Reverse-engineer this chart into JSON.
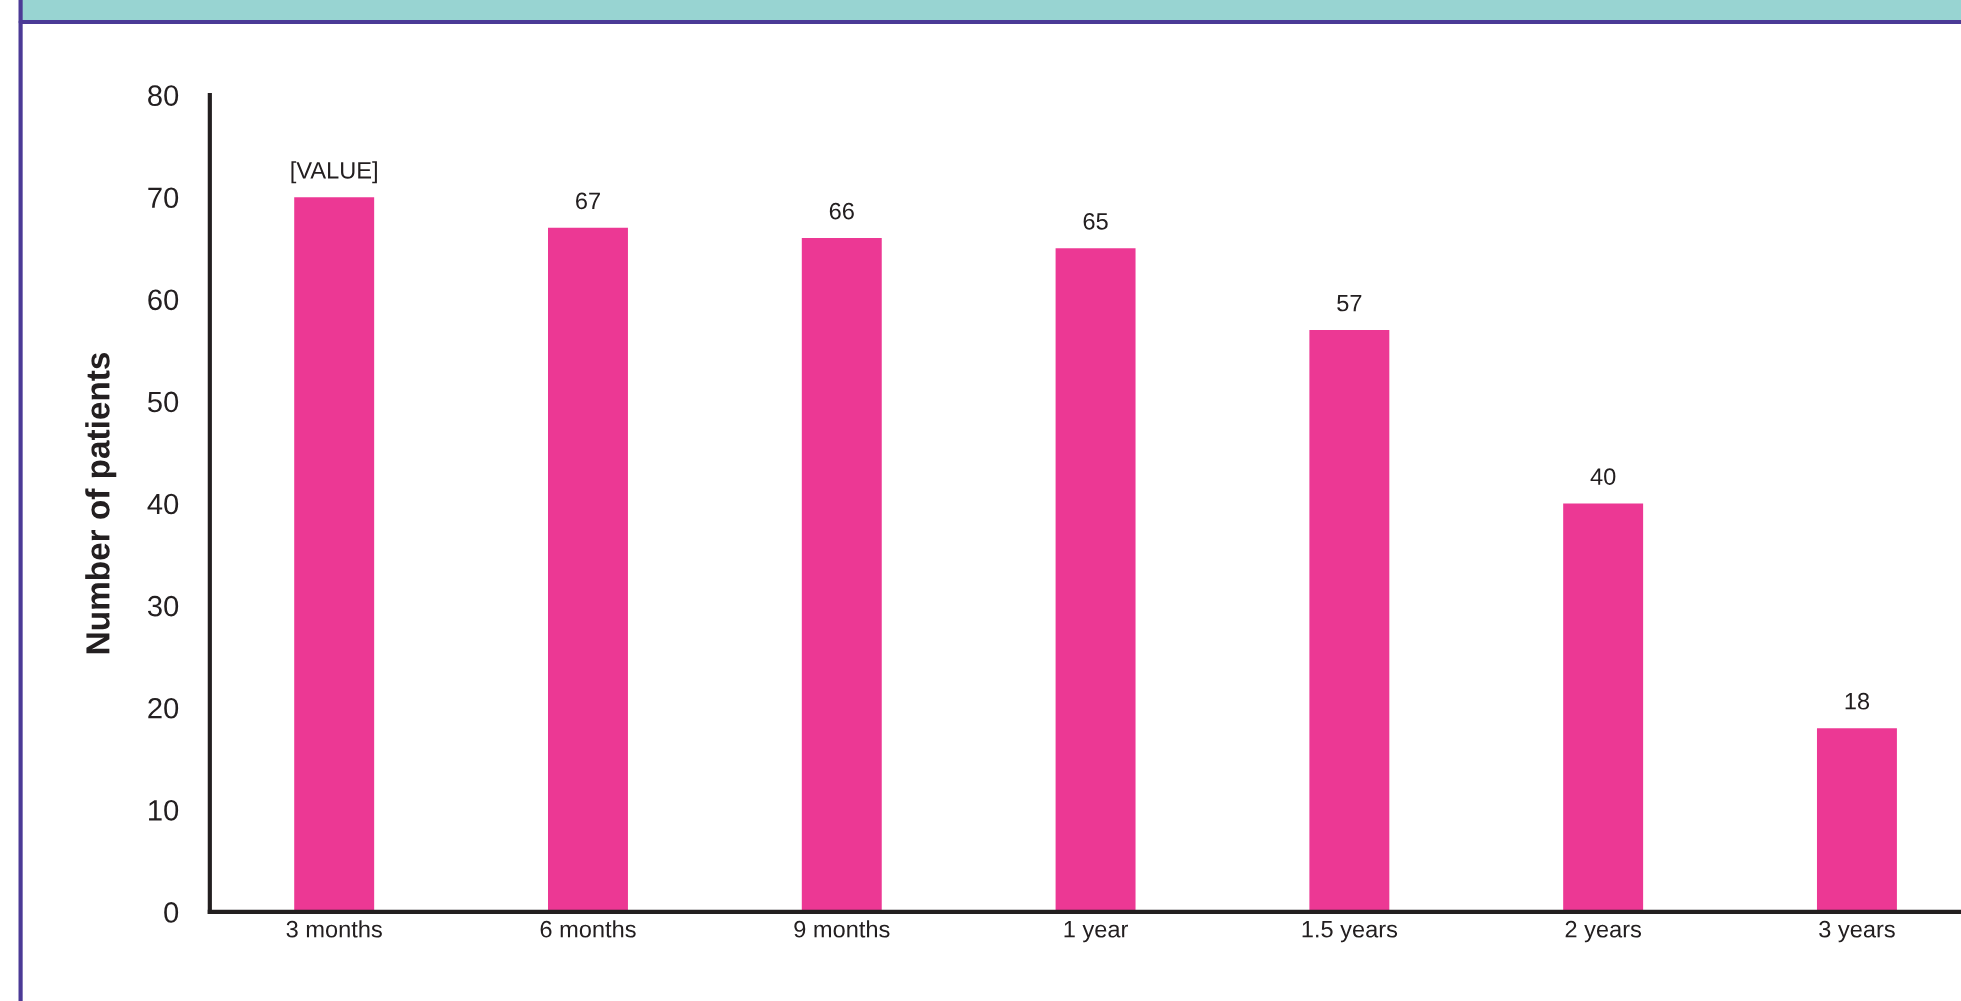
{
  "chart_data": {
    "type": "bar",
    "ylabel": "Number of patients",
    "categories": [
      "3 months",
      "6 months",
      "9 months",
      "1 year",
      "1.5 years",
      "2 years",
      "3 years"
    ],
    "values": [
      70,
      67,
      66,
      65,
      57,
      40,
      18
    ],
    "value_labels": [
      "[VALUE]",
      "67",
      "66",
      "65",
      "57",
      "40",
      "18"
    ],
    "color": "#ec3894",
    "ylim": [
      0,
      80
    ],
    "yticks": [
      0,
      10,
      20,
      30,
      40,
      50,
      60,
      70,
      80
    ],
    "grid": false,
    "legend": false
  }
}
